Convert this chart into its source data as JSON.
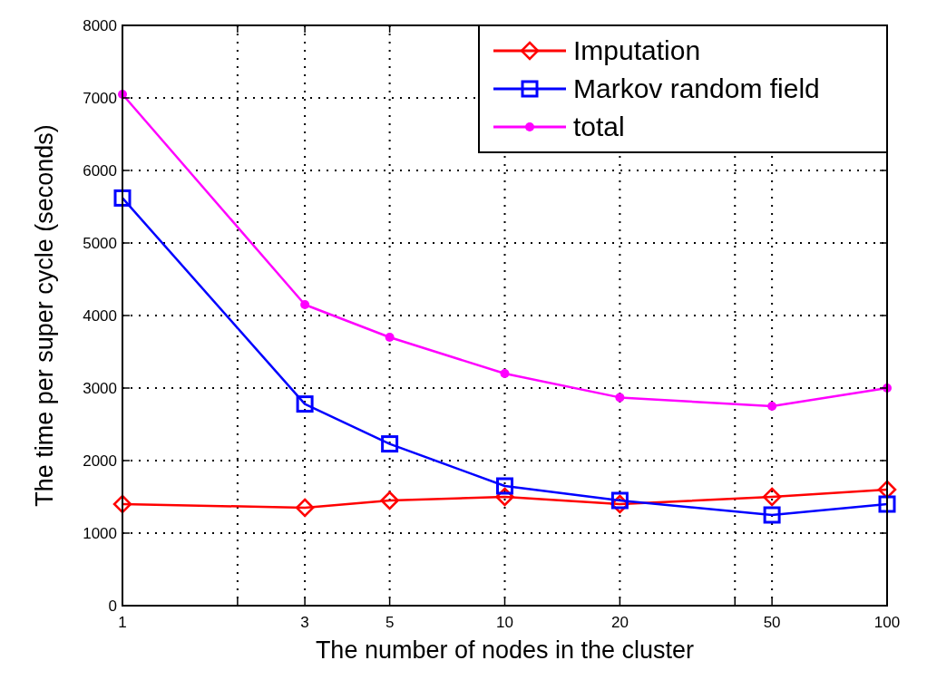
{
  "chart_data": {
    "type": "line",
    "xlabel": "The number of nodes in the cluster",
    "ylabel": "The time per super cycle (seconds)",
    "log": "x",
    "x": [
      1,
      3,
      5,
      10,
      20,
      50,
      100
    ],
    "xlim": [
      1,
      100
    ],
    "xticks": [
      1,
      {
        "value": 2,
        "label": null
      },
      3,
      5,
      10,
      20,
      {
        "value": 40,
        "label": null
      },
      50,
      100
    ],
    "ylim": [
      0,
      8000
    ],
    "yticks": [
      0,
      1000,
      2000,
      3000,
      4000,
      5000,
      6000,
      7000,
      8000
    ],
    "grid": true,
    "legend": "top right",
    "series": [
      {
        "name": "Imputation",
        "color": "#ff0000",
        "marker": "diamond",
        "values": [
          1400,
          1350,
          1450,
          1500,
          1400,
          1500,
          1600
        ]
      },
      {
        "name": "Markov random field",
        "color": "#0000ff",
        "marker": "square",
        "values": [
          5620,
          2780,
          2230,
          1650,
          1450,
          1250,
          1400
        ]
      },
      {
        "name": "total",
        "color": "#ff00ff",
        "marker": "circle",
        "values": [
          7050,
          4150,
          3700,
          3200,
          2870,
          2750,
          3000
        ]
      }
    ]
  }
}
